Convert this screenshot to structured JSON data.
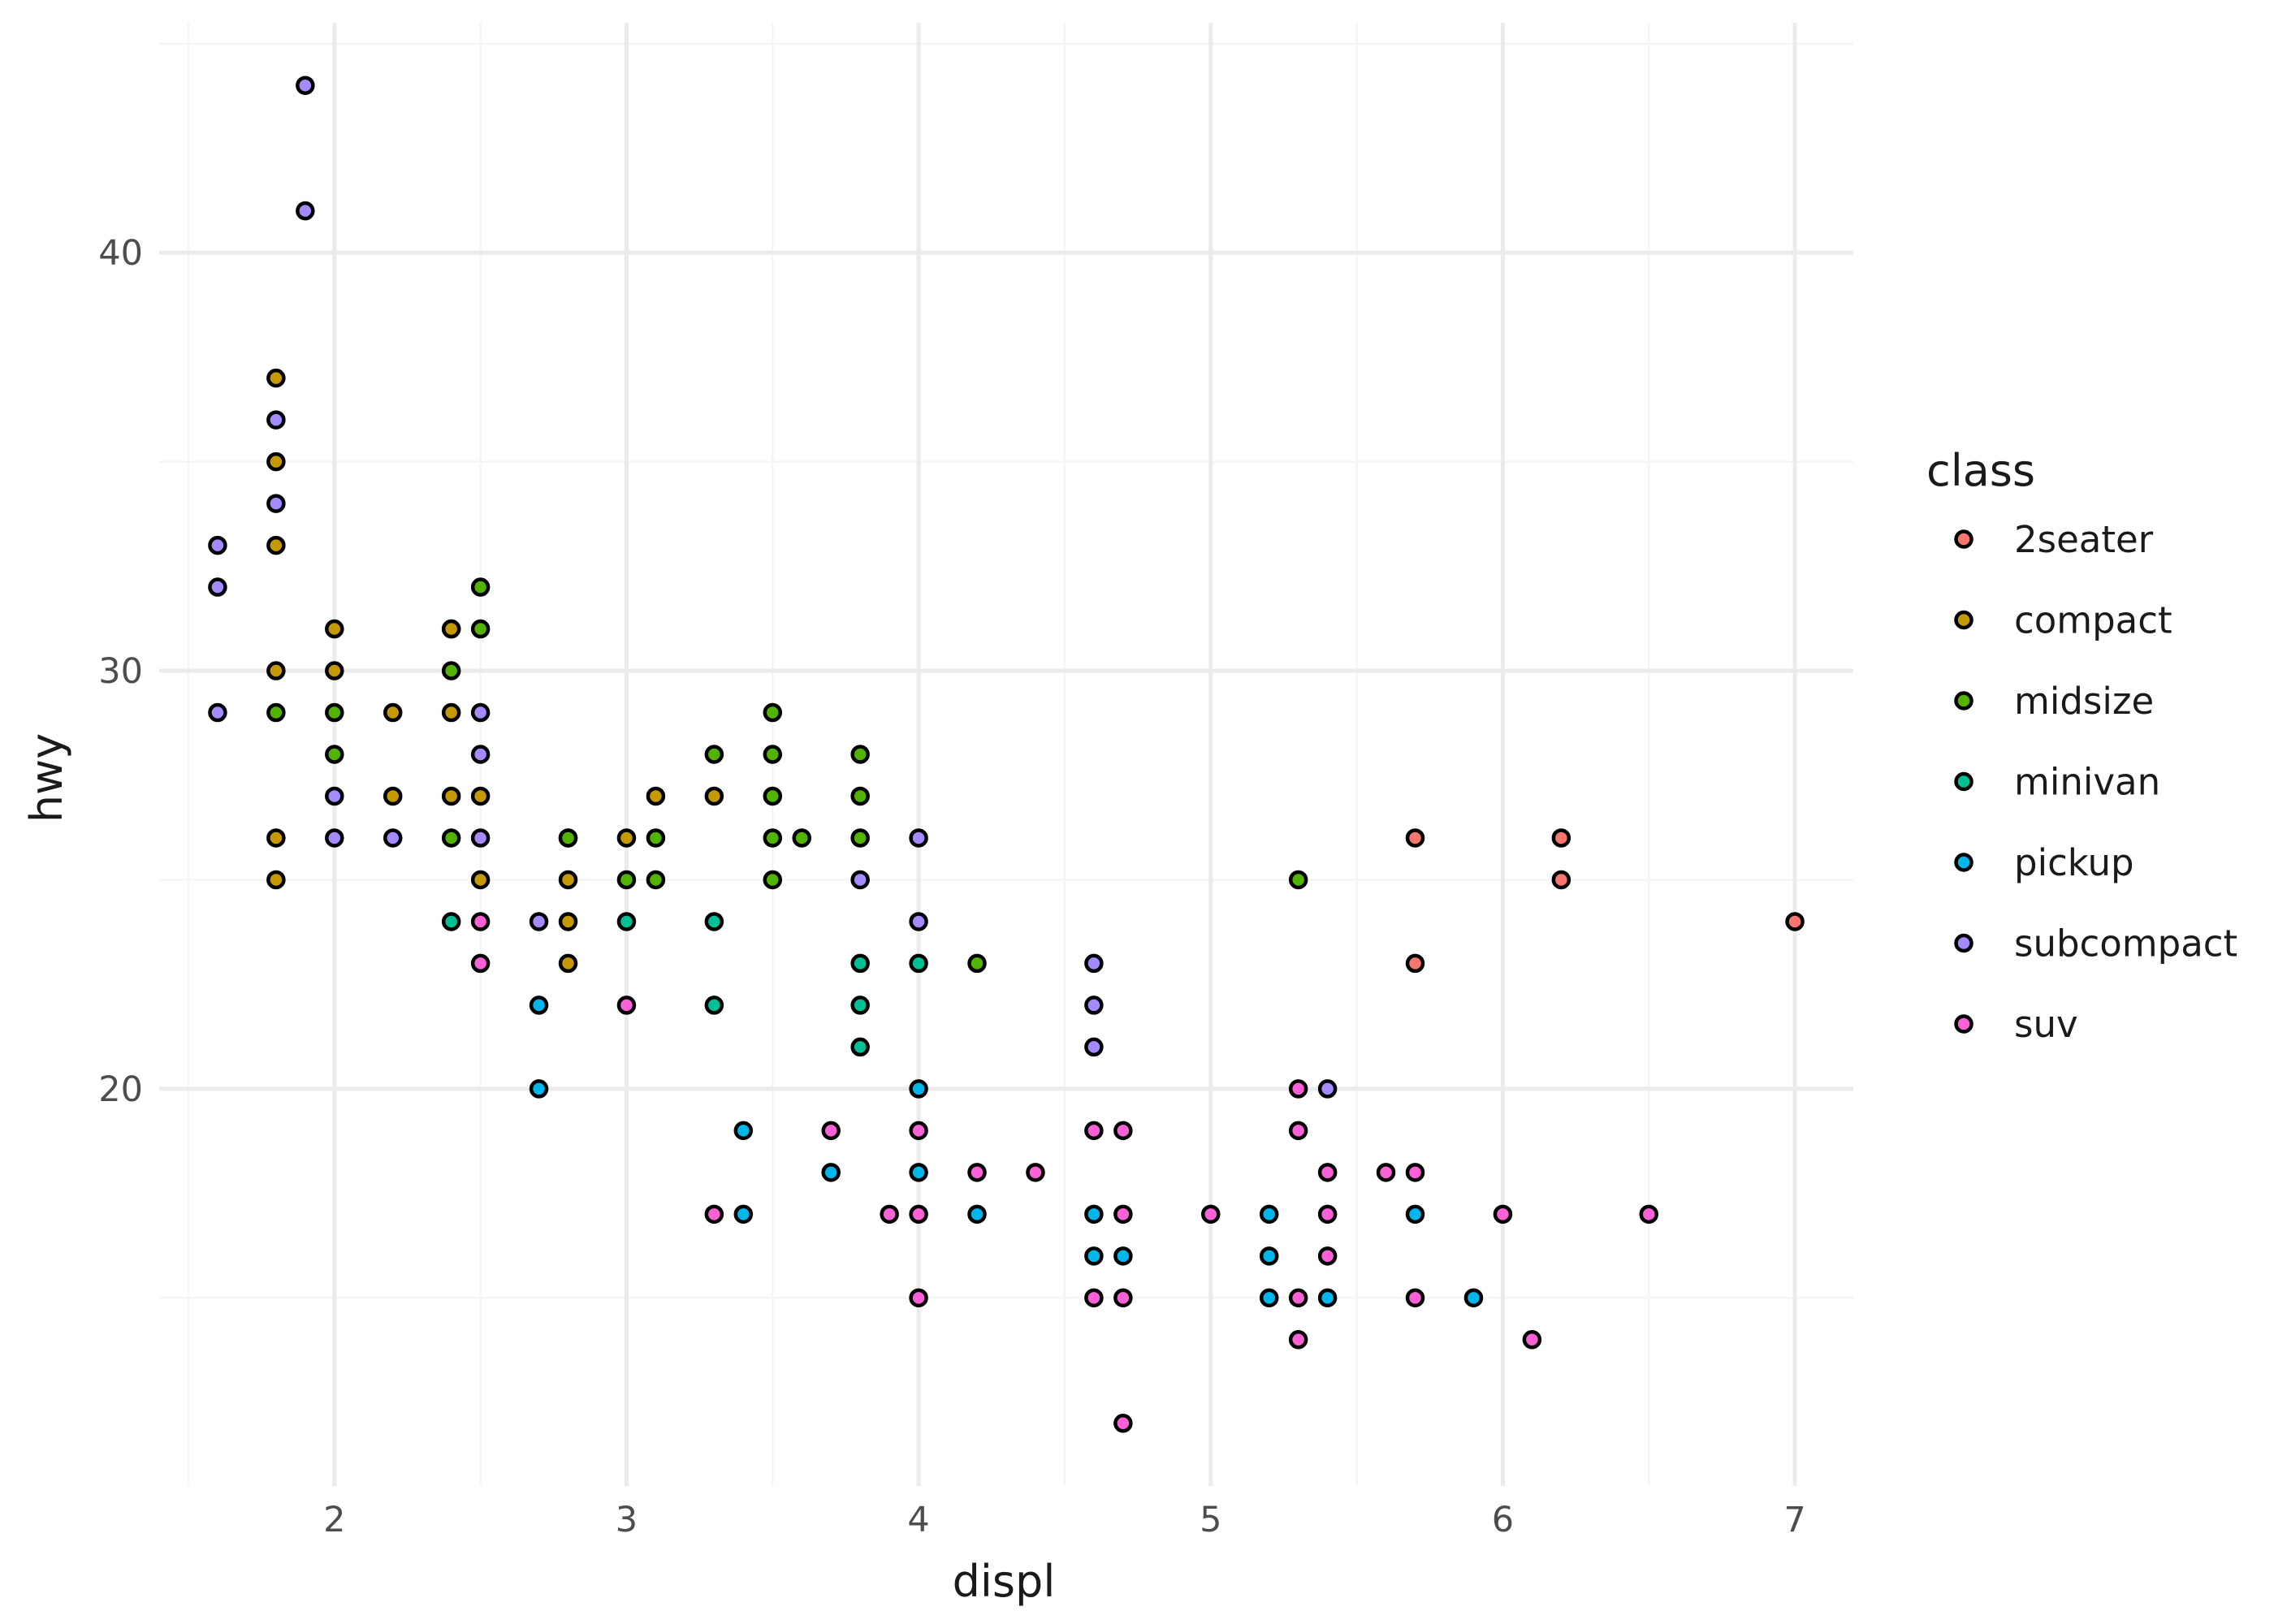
{
  "chart_data": {
    "type": "scatter",
    "xlabel": "displ",
    "ylabel": "hwy",
    "xlim": [
      1.4,
      7.2
    ],
    "ylim": [
      10.5,
      45.5
    ],
    "x_ticks": [
      2,
      3,
      4,
      5,
      6,
      7
    ],
    "y_ticks": [
      20,
      30,
      40
    ],
    "grid": true,
    "legend": {
      "title": "class",
      "placement": "right",
      "entries": [
        {
          "label": "2seater",
          "color": "#F8766D"
        },
        {
          "label": "compact",
          "color": "#C49A00"
        },
        {
          "label": "midsize",
          "color": "#53B400"
        },
        {
          "label": "minivan",
          "color": "#00C094"
        },
        {
          "label": "pickup",
          "color": "#00B6EB"
        },
        {
          "label": "subcompact",
          "color": "#A58AFF"
        },
        {
          "label": "suv",
          "color": "#FB61D7"
        }
      ]
    },
    "series": [
      {
        "name": "2seater",
        "color": "#F8766D",
        "points": [
          [
            5.7,
            26
          ],
          [
            5.7,
            23
          ],
          [
            6.2,
            26
          ],
          [
            6.2,
            25
          ],
          [
            7.0,
            24
          ]
        ]
      },
      {
        "name": "compact",
        "color": "#C49A00",
        "points": [
          [
            1.8,
            37
          ],
          [
            1.8,
            35
          ],
          [
            1.8,
            33
          ],
          [
            1.8,
            30
          ],
          [
            1.8,
            26
          ],
          [
            1.8,
            25
          ],
          [
            2.0,
            31
          ],
          [
            2.0,
            30
          ],
          [
            2.2,
            29
          ],
          [
            2.2,
            27
          ],
          [
            2.4,
            31
          ],
          [
            2.4,
            29
          ],
          [
            2.4,
            27
          ],
          [
            2.5,
            27
          ],
          [
            2.5,
            25
          ],
          [
            2.8,
            26
          ],
          [
            2.8,
            25
          ],
          [
            2.8,
            24
          ],
          [
            2.8,
            23
          ],
          [
            3.0,
            26
          ],
          [
            3.1,
            27
          ],
          [
            3.3,
            27
          ],
          [
            2.4,
            31
          ]
        ]
      },
      {
        "name": "midsize",
        "color": "#53B400",
        "points": [
          [
            1.8,
            29
          ],
          [
            2.0,
            29
          ],
          [
            2.0,
            28
          ],
          [
            2.4,
            30
          ],
          [
            2.4,
            26
          ],
          [
            2.5,
            32
          ],
          [
            2.5,
            31
          ],
          [
            2.8,
            26
          ],
          [
            3.0,
            25
          ],
          [
            3.1,
            26
          ],
          [
            3.1,
            25
          ],
          [
            3.3,
            28
          ],
          [
            3.5,
            29
          ],
          [
            3.5,
            28
          ],
          [
            3.5,
            27
          ],
          [
            3.5,
            26
          ],
          [
            3.5,
            25
          ],
          [
            3.6,
            26
          ],
          [
            3.8,
            28
          ],
          [
            3.8,
            27
          ],
          [
            3.8,
            26
          ],
          [
            4.2,
            23
          ],
          [
            5.3,
            25
          ]
        ]
      },
      {
        "name": "minivan",
        "color": "#00C094",
        "points": [
          [
            2.4,
            24
          ],
          [
            3.0,
            24
          ],
          [
            3.3,
            24
          ],
          [
            3.3,
            22
          ],
          [
            3.8,
            23
          ],
          [
            3.8,
            22
          ],
          [
            3.8,
            21
          ],
          [
            4.0,
            23
          ]
        ]
      },
      {
        "name": "pickup",
        "color": "#00B6EB",
        "points": [
          [
            2.7,
            22
          ],
          [
            2.7,
            20
          ],
          [
            3.4,
            19
          ],
          [
            3.4,
            17
          ],
          [
            3.7,
            18
          ],
          [
            4.0,
            20
          ],
          [
            4.0,
            18
          ],
          [
            4.2,
            17
          ],
          [
            4.6,
            17
          ],
          [
            4.6,
            16
          ],
          [
            4.7,
            16
          ],
          [
            5.2,
            17
          ],
          [
            5.2,
            16
          ],
          [
            5.2,
            15
          ],
          [
            5.4,
            15
          ],
          [
            5.7,
            17
          ],
          [
            5.9,
            15
          ]
        ]
      },
      {
        "name": "subcompact",
        "color": "#A58AFF",
        "points": [
          [
            1.6,
            33
          ],
          [
            1.6,
            32
          ],
          [
            1.6,
            29
          ],
          [
            1.8,
            36
          ],
          [
            1.8,
            34
          ],
          [
            1.9,
            44
          ],
          [
            1.9,
            41
          ],
          [
            2.0,
            27
          ],
          [
            2.0,
            26
          ],
          [
            2.2,
            26
          ],
          [
            2.5,
            29
          ],
          [
            2.5,
            28
          ],
          [
            2.5,
            26
          ],
          [
            2.7,
            24
          ],
          [
            3.8,
            25
          ],
          [
            4.0,
            26
          ],
          [
            4.0,
            24
          ],
          [
            4.6,
            23
          ],
          [
            4.6,
            22
          ],
          [
            4.6,
            21
          ],
          [
            5.4,
            20
          ]
        ]
      },
      {
        "name": "suv",
        "color": "#FB61D7",
        "points": [
          [
            2.5,
            24
          ],
          [
            2.5,
            23
          ],
          [
            3.0,
            22
          ],
          [
            3.3,
            17
          ],
          [
            3.7,
            19
          ],
          [
            3.9,
            17
          ],
          [
            4.0,
            19
          ],
          [
            4.0,
            17
          ],
          [
            4.0,
            15
          ],
          [
            4.2,
            18
          ],
          [
            4.4,
            18
          ],
          [
            4.6,
            19
          ],
          [
            4.6,
            15
          ],
          [
            4.7,
            19
          ],
          [
            4.7,
            17
          ],
          [
            4.7,
            15
          ],
          [
            4.7,
            12
          ],
          [
            5.0,
            17
          ],
          [
            5.3,
            20
          ],
          [
            5.3,
            19
          ],
          [
            5.3,
            15
          ],
          [
            5.3,
            14
          ],
          [
            5.4,
            18
          ],
          [
            5.4,
            17
          ],
          [
            5.4,
            16
          ],
          [
            5.6,
            18
          ],
          [
            5.7,
            18
          ],
          [
            5.7,
            15
          ],
          [
            6.0,
            17
          ],
          [
            6.1,
            14
          ],
          [
            6.5,
            17
          ]
        ]
      }
    ]
  }
}
